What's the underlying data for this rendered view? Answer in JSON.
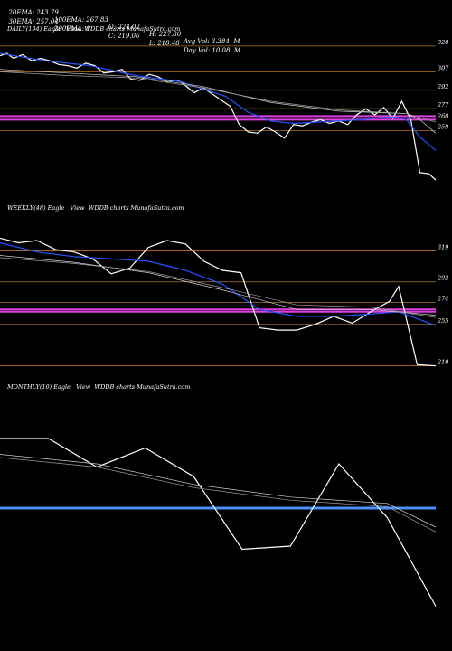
{
  "header": {
    "row1": [
      "20EMA: 243.79",
      "100EMA: 267.83",
      "O: 224.02",
      "H: 227.80",
      "Avg Vol: 3.384  M"
    ],
    "row2": [
      "30EMA: 257.04",
      "200EMA: 0",
      "C: 219.06",
      "L: 218.48",
      "Day Vol: 10.08  M"
    ]
  },
  "colors": {
    "price": "#ffffff",
    "ema_fast": "#2255ff",
    "level": "#b8732a",
    "band_pink": "#e040e0",
    "band_blue": "#4a90ff"
  },
  "chart_data": [
    {
      "type": "line",
      "title": "DAILY(194) Eagle   View  WDDB charts MunafaSutra.com",
      "ylim": [
        205,
        336
      ],
      "levels": [
        328,
        307,
        292,
        277,
        268,
        259
      ],
      "level_labels": [
        "328",
        "307",
        "292",
        "277",
        "268",
        "259"
      ],
      "bands": [
        {
          "y": 271,
          "color": "pink"
        },
        {
          "y": 268,
          "color": "pink"
        }
      ],
      "series": [
        {
          "role": "price",
          "x": [
            0,
            3,
            6,
            10,
            14,
            18,
            22,
            26,
            30,
            34,
            38,
            42,
            46,
            50,
            54,
            58,
            62,
            66,
            70,
            74,
            78,
            80,
            82,
            86,
            90,
            94,
            98,
            102,
            106,
            110,
            114,
            118,
            122,
            126,
            130,
            134,
            138,
            142,
            146,
            150,
            154,
            158,
            162,
            166,
            170,
            174,
            178,
            182,
            186,
            190,
            193
          ],
          "y": [
            320,
            322,
            318,
            321,
            316,
            318,
            316,
            313,
            312,
            310,
            314,
            312,
            306,
            307,
            309,
            301,
            300,
            305,
            303,
            299,
            300,
            299,
            296,
            290,
            294,
            289,
            284,
            279,
            264,
            258,
            257,
            262,
            258,
            253,
            264,
            263,
            266,
            268,
            265,
            267,
            264,
            272,
            277,
            272,
            278,
            269,
            283,
            268,
            225,
            224,
            219
          ]
        },
        {
          "role": "ema_fast",
          "x": [
            0,
            20,
            40,
            60,
            80,
            100,
            110,
            120,
            130,
            140,
            150,
            160,
            170,
            176,
            180,
            186,
            193
          ],
          "y": [
            322,
            316,
            312,
            304,
            299,
            287,
            274,
            267,
            265,
            266,
            267,
            268,
            270,
            270,
            268,
            254,
            243
          ]
        },
        {
          "role": "ema_slow",
          "x": [
            0,
            30,
            60,
            90,
            120,
            150,
            180,
            186,
            193
          ],
          "y": [
            309,
            306,
            303,
            295,
            282,
            275,
            273,
            268,
            257
          ]
        },
        {
          "role": "ema_slow2",
          "x": [
            0,
            30,
            60,
            90,
            120,
            150,
            180,
            193
          ],
          "y": [
            307,
            304,
            302,
            294,
            283,
            276,
            273,
            266
          ]
        }
      ]
    },
    {
      "type": "line",
      "title": "WEEKLY(48) Eagle   View  WDDB charts MunafaSutra.com",
      "ylim": [
        210,
        350
      ],
      "levels": [
        319,
        292,
        274,
        255,
        219
      ],
      "level_labels": [
        "319",
        "292",
        "274",
        "255",
        "219"
      ],
      "bands": [
        {
          "y": 268,
          "color": "pink"
        },
        {
          "y": 266,
          "color": "pink"
        }
      ],
      "series": [
        {
          "role": "price",
          "x": [
            0,
            2,
            4,
            6,
            8,
            10,
            12,
            14,
            16,
            18,
            20,
            22,
            24,
            26,
            28,
            30,
            32,
            34,
            36,
            38,
            40,
            42,
            43,
            45,
            47
          ],
          "y": [
            330,
            326,
            328,
            320,
            318,
            312,
            299,
            304,
            322,
            328,
            325,
            310,
            302,
            300,
            252,
            250,
            250,
            255,
            262,
            256,
            266,
            275,
            288,
            220,
            219
          ]
        },
        {
          "role": "ema_fast",
          "x": [
            0,
            4,
            8,
            12,
            16,
            20,
            24,
            28,
            32,
            36,
            40,
            43,
            47
          ],
          "y": [
            326,
            318,
            314,
            312,
            310,
            302,
            290,
            268,
            262,
            262,
            264,
            266,
            254
          ]
        },
        {
          "role": "ema_slow",
          "x": [
            0,
            8,
            16,
            24,
            32,
            40,
            47
          ],
          "y": [
            315,
            309,
            300,
            285,
            268,
            268,
            263
          ]
        },
        {
          "role": "ema_slow2",
          "x": [
            0,
            8,
            16,
            24,
            32,
            40,
            47
          ],
          "y": [
            313,
            308,
            301,
            287,
            272,
            270,
            261
          ]
        }
      ]
    },
    {
      "type": "line",
      "title": "MONTHLY(10) Eagle   View  WDDB charts MunafaSutra.com",
      "ylim": [
        200,
        360
      ],
      "levels": [],
      "level_labels": [],
      "bands": [
        {
          "y": 288,
          "color": "blue"
        }
      ],
      "series": [
        {
          "role": "price",
          "x": [
            0,
            1,
            2,
            3,
            4,
            5,
            6,
            7,
            8,
            9
          ],
          "y": [
            332,
            332,
            314,
            326,
            308,
            262,
            264,
            316,
            282,
            226
          ]
        },
        {
          "role": "ema_slow",
          "x": [
            0,
            2,
            4,
            6,
            8,
            9
          ],
          "y": [
            322,
            316,
            303,
            295,
            291,
            276
          ]
        },
        {
          "role": "ema_slow2",
          "x": [
            0,
            2,
            4,
            6,
            8,
            9
          ],
          "y": [
            320,
            314,
            301,
            293,
            289,
            273
          ]
        }
      ]
    }
  ]
}
